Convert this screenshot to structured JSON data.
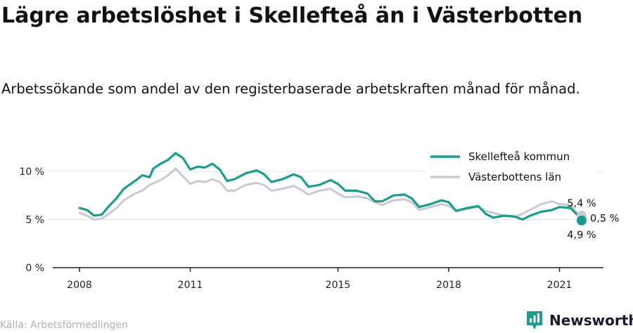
{
  "title": "Lägre arbetslöshet i Skellefteå än i Västerbotten",
  "subtitle": "Arbetssökande som andel av den registerbaserade arbetskraften månad för månad.",
  "source": "Källa: Arbetsförmedlingen",
  "brand": "Newsworthy",
  "colors": {
    "skelleftea": "#1a9c8e",
    "vasterbotten": "#c9c9d3",
    "grid": "#e3e3e3",
    "axis": "#222222",
    "brand": "#1a9c8e"
  },
  "chart_data": {
    "type": "line",
    "x_unit": "year",
    "xlim": [
      2006.7,
      2022.2
    ],
    "ylim": [
      0,
      10
    ],
    "grid": true,
    "legend_position": "top-right",
    "x_ticks": [
      {
        "value": 2008,
        "label": "2008"
      },
      {
        "value": 2011,
        "label": "2011"
      },
      {
        "value": 2015,
        "label": "2015"
      },
      {
        "value": 2018,
        "label": "2018"
      },
      {
        "value": 2021,
        "label": "2021"
      }
    ],
    "y_ticks": [
      {
        "value": 0,
        "label": "0 %"
      },
      {
        "value": 5,
        "label": "5 %"
      },
      {
        "value": 10,
        "label": "10 %"
      }
    ],
    "series": [
      {
        "name": "Västerbottens län",
        "key": "vasterbotten",
        "points": [
          [
            2008.0,
            5.7
          ],
          [
            2008.2,
            5.4
          ],
          [
            2008.4,
            5.0
          ],
          [
            2008.6,
            5.1
          ],
          [
            2008.8,
            5.6
          ],
          [
            2009.0,
            6.2
          ],
          [
            2009.2,
            7.0
          ],
          [
            2009.5,
            7.7
          ],
          [
            2009.7,
            8.0
          ],
          [
            2009.9,
            8.6
          ],
          [
            2010.2,
            9.1
          ],
          [
            2010.4,
            9.6
          ],
          [
            2010.6,
            10.3
          ],
          [
            2010.8,
            9.5
          ],
          [
            2011.0,
            8.7
          ],
          [
            2011.2,
            9.0
          ],
          [
            2011.4,
            8.9
          ],
          [
            2011.6,
            9.2
          ],
          [
            2011.8,
            8.9
          ],
          [
            2012.0,
            8.0
          ],
          [
            2012.2,
            8.0
          ],
          [
            2012.5,
            8.6
          ],
          [
            2012.8,
            8.8
          ],
          [
            2013.0,
            8.6
          ],
          [
            2013.2,
            8.0
          ],
          [
            2013.5,
            8.2
          ],
          [
            2013.8,
            8.5
          ],
          [
            2014.0,
            8.1
          ],
          [
            2014.2,
            7.6
          ],
          [
            2014.5,
            8.0
          ],
          [
            2014.8,
            8.2
          ],
          [
            2015.0,
            7.7
          ],
          [
            2015.2,
            7.3
          ],
          [
            2015.5,
            7.4
          ],
          [
            2015.8,
            7.2
          ],
          [
            2016.0,
            6.8
          ],
          [
            2016.2,
            6.5
          ],
          [
            2016.5,
            7.0
          ],
          [
            2016.8,
            7.1
          ],
          [
            2017.0,
            6.8
          ],
          [
            2017.2,
            6.0
          ],
          [
            2017.5,
            6.3
          ],
          [
            2017.8,
            6.6
          ],
          [
            2018.0,
            6.4
          ],
          [
            2018.2,
            5.9
          ],
          [
            2018.5,
            6.1
          ],
          [
            2018.8,
            6.3
          ],
          [
            2019.0,
            5.9
          ],
          [
            2019.2,
            5.7
          ],
          [
            2019.5,
            5.4
          ],
          [
            2019.8,
            5.3
          ],
          [
            2020.0,
            5.6
          ],
          [
            2020.2,
            6.0
          ],
          [
            2020.5,
            6.6
          ],
          [
            2020.8,
            6.9
          ],
          [
            2021.0,
            6.6
          ],
          [
            2021.3,
            6.5
          ],
          [
            2021.5,
            5.6
          ],
          [
            2021.6,
            5.4
          ]
        ]
      },
      {
        "name": "Skellefteå kommun",
        "key": "skelleftea",
        "points": [
          [
            2008.0,
            6.2
          ],
          [
            2008.2,
            6.0
          ],
          [
            2008.4,
            5.4
          ],
          [
            2008.6,
            5.5
          ],
          [
            2008.8,
            6.4
          ],
          [
            2009.0,
            7.2
          ],
          [
            2009.2,
            8.2
          ],
          [
            2009.5,
            9.0
          ],
          [
            2009.7,
            9.6
          ],
          [
            2009.9,
            9.4
          ],
          [
            2010.0,
            10.3
          ],
          [
            2010.2,
            10.8
          ],
          [
            2010.4,
            11.2
          ],
          [
            2010.6,
            11.9
          ],
          [
            2010.8,
            11.4
          ],
          [
            2011.0,
            10.2
          ],
          [
            2011.2,
            10.5
          ],
          [
            2011.4,
            10.4
          ],
          [
            2011.6,
            10.8
          ],
          [
            2011.8,
            10.2
          ],
          [
            2012.0,
            9.0
          ],
          [
            2012.2,
            9.2
          ],
          [
            2012.5,
            9.8
          ],
          [
            2012.8,
            10.1
          ],
          [
            2013.0,
            9.7
          ],
          [
            2013.2,
            8.9
          ],
          [
            2013.5,
            9.2
          ],
          [
            2013.8,
            9.7
          ],
          [
            2014.0,
            9.4
          ],
          [
            2014.2,
            8.4
          ],
          [
            2014.5,
            8.6
          ],
          [
            2014.8,
            9.1
          ],
          [
            2015.0,
            8.7
          ],
          [
            2015.2,
            8.0
          ],
          [
            2015.5,
            8.0
          ],
          [
            2015.8,
            7.7
          ],
          [
            2016.0,
            6.9
          ],
          [
            2016.2,
            6.9
          ],
          [
            2016.5,
            7.5
          ],
          [
            2016.8,
            7.6
          ],
          [
            2017.0,
            7.2
          ],
          [
            2017.2,
            6.3
          ],
          [
            2017.5,
            6.6
          ],
          [
            2017.8,
            7.0
          ],
          [
            2018.0,
            6.8
          ],
          [
            2018.2,
            5.9
          ],
          [
            2018.5,
            6.2
          ],
          [
            2018.8,
            6.4
          ],
          [
            2019.0,
            5.6
          ],
          [
            2019.2,
            5.2
          ],
          [
            2019.5,
            5.4
          ],
          [
            2019.8,
            5.3
          ],
          [
            2020.0,
            5.0
          ],
          [
            2020.2,
            5.4
          ],
          [
            2020.5,
            5.8
          ],
          [
            2020.8,
            6.0
          ],
          [
            2021.0,
            6.3
          ],
          [
            2021.3,
            6.2
          ],
          [
            2021.5,
            5.4
          ],
          [
            2021.6,
            4.9
          ]
        ]
      }
    ],
    "annotations": [
      {
        "label": "5,4 %",
        "series": "vasterbotten"
      },
      {
        "label": "0,5 %",
        "kind": "difference"
      },
      {
        "label": "4,9 %",
        "series": "skelleftea"
      }
    ]
  }
}
